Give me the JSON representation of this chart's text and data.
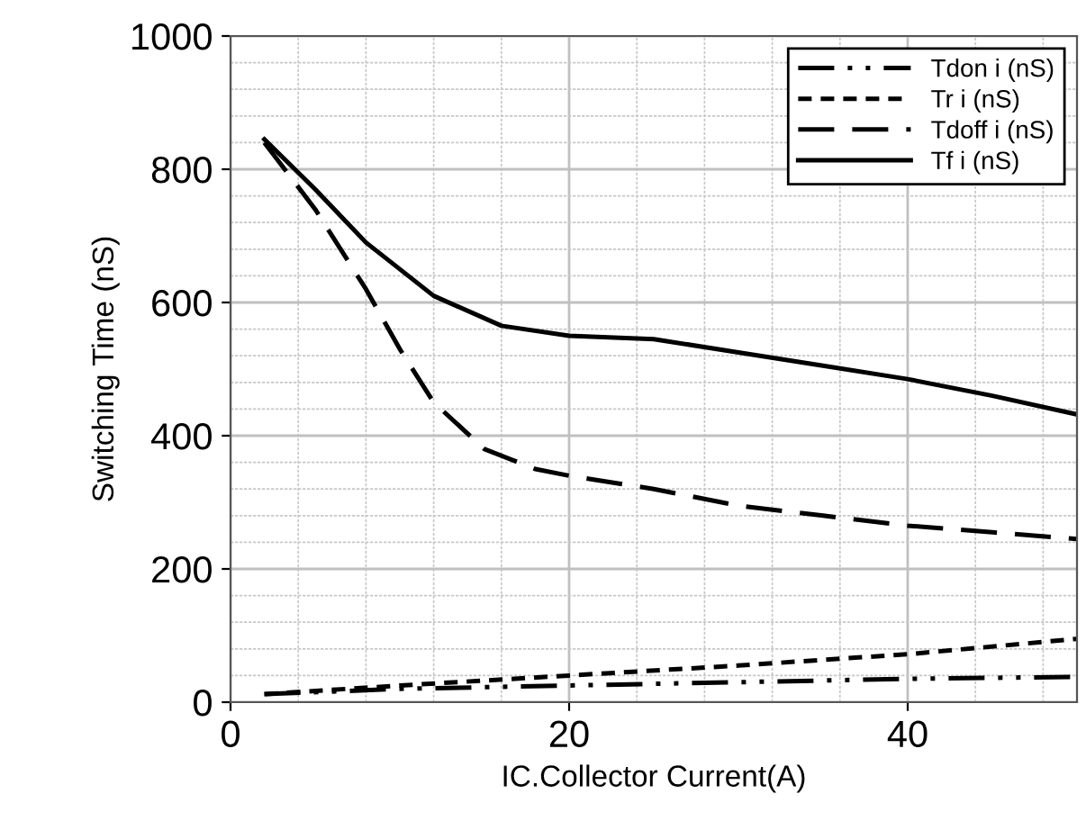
{
  "chart_data": {
    "type": "line",
    "xlabel": "IC.Collector Current(A)",
    "ylabel": "Switching Time (nS)",
    "xlim": [
      0,
      50
    ],
    "ylim": [
      0,
      1000
    ],
    "xticks": [
      0,
      20,
      40
    ],
    "yticks": [
      0,
      200,
      400,
      600,
      800,
      1000
    ],
    "grid": true,
    "legend": "top right",
    "marker": "none",
    "series": [
      {
        "name": "Tdon i (nS)",
        "color": "#000000",
        "line_style": "dashdot",
        "x": [
          2,
          10,
          20,
          30,
          40,
          50
        ],
        "values": [
          12,
          20,
          25,
          30,
          35,
          38
        ]
      },
      {
        "name": "Tr i (nS)",
        "color": "#000000",
        "line_style": "dotted",
        "x": [
          2,
          10,
          20,
          30,
          40,
          50
        ],
        "values": [
          12,
          25,
          40,
          55,
          72,
          95
        ]
      },
      {
        "name": "Tdoff i (nS)",
        "color": "#000000",
        "line_style": "dashed",
        "x": [
          2,
          5,
          8,
          10,
          12,
          15,
          18,
          20,
          25,
          30,
          35,
          40,
          45,
          50
        ],
        "values": [
          840,
          740,
          620,
          530,
          450,
          380,
          350,
          340,
          320,
          295,
          280,
          265,
          255,
          245
        ]
      },
      {
        "name": "Tf i (nS)",
        "color": "#000000",
        "line_style": "solid",
        "x": [
          2,
          5,
          8,
          12,
          16,
          20,
          25,
          30,
          35,
          40,
          45,
          50
        ],
        "values": [
          845,
          770,
          690,
          610,
          565,
          550,
          545,
          525,
          505,
          485,
          460,
          432
        ]
      }
    ]
  }
}
